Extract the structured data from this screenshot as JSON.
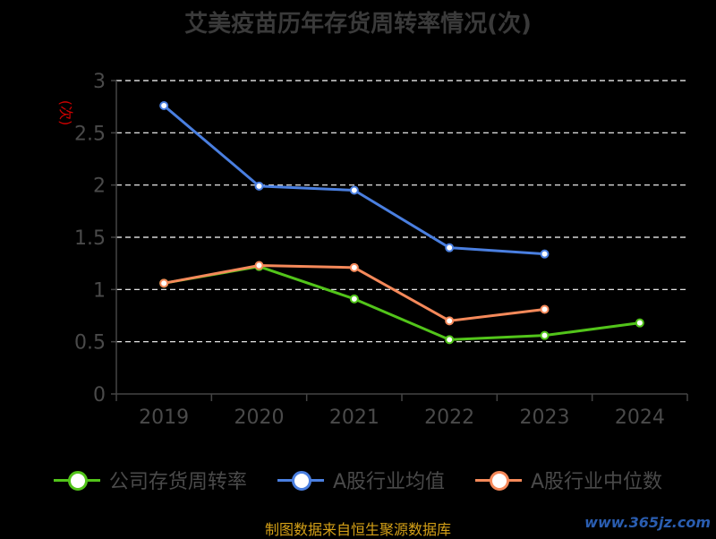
{
  "chart_data": {
    "type": "line",
    "title": "艾美疫苗历年存货周转率情况(次)",
    "ylabel": "(次)",
    "categories": [
      "2019",
      "2020",
      "2021",
      "2022",
      "2023",
      "2024"
    ],
    "ylim": [
      0,
      3
    ],
    "yticks": [
      "0",
      "0.5",
      "1",
      "1.5",
      "2",
      "2.5",
      "3"
    ],
    "grid": true,
    "legend_position": "bottom",
    "series": [
      {
        "name": "公司存货周转率",
        "color": "#52c41a",
        "values": [
          1.06,
          1.22,
          0.91,
          0.52,
          0.56,
          0.68
        ]
      },
      {
        "name": "A股行业均值",
        "color": "#4a7fe0",
        "values": [
          2.76,
          1.99,
          1.95,
          1.4,
          1.34,
          null
        ]
      },
      {
        "name": "A股行业中位数",
        "color": "#f5895a",
        "values": [
          1.06,
          1.23,
          1.21,
          0.7,
          0.81,
          null
        ]
      }
    ]
  },
  "footer": {
    "source": "制图数据来自恒生聚源数据库",
    "watermark": "www.365jz.com"
  }
}
